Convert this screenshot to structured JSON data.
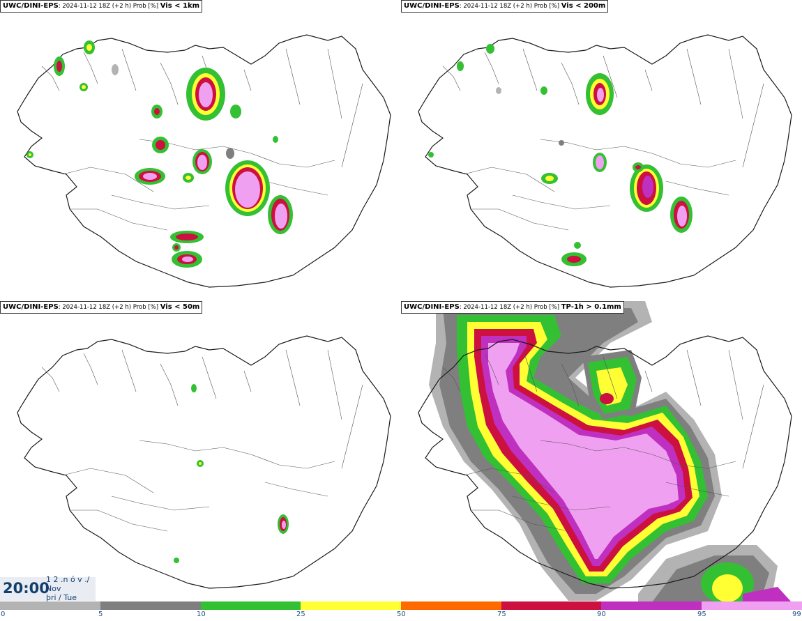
{
  "panels": [
    {
      "model": "UWC/DINI-EPS",
      "meta": ": 2024-11-12 18Z (+2 h) Prob [%] ",
      "field": "Vis < 1km"
    },
    {
      "model": "UWC/DINI-EPS",
      "meta": ": 2024-11-12 18Z (+2 h) Prob [%] ",
      "field": "Vis < 200m"
    },
    {
      "model": "UWC/DINI-EPS",
      "meta": ": 2024-11-12 18Z (+2 h) Prob [%] ",
      "field": "Vis < 50m"
    },
    {
      "model": "UWC/DINI-EPS",
      "meta": ": 2024-11-12 18Z (+2 h) Prob [%] ",
      "field": "TP-1h > 0.1mm"
    }
  ],
  "timebox": {
    "time": "20:00",
    "line1": "1 2 .n ó v ./",
    "line2": "Nov",
    "line3": "þri / Tue"
  },
  "legend": {
    "ticks": [
      "0",
      "5",
      "10",
      "25",
      "50",
      "75",
      "90",
      "95",
      "99"
    ],
    "colors": [
      "#ffffff",
      "#b3b3b3",
      "#7f7f7f",
      "#33c033",
      "#ffff33",
      "#ff6a00",
      "#cc1040",
      "#c030c0",
      "#f0a0f0"
    ]
  },
  "map_colors": {
    "coast": "#1a1a1a",
    "gray_light": "#b3b3b3",
    "gray_dark": "#7f7f7f",
    "green": "#33c033",
    "yellow": "#ffff33",
    "orange": "#ff6a00",
    "red": "#cc1040",
    "magenta": "#c030c0",
    "pink": "#f0a0f0"
  }
}
